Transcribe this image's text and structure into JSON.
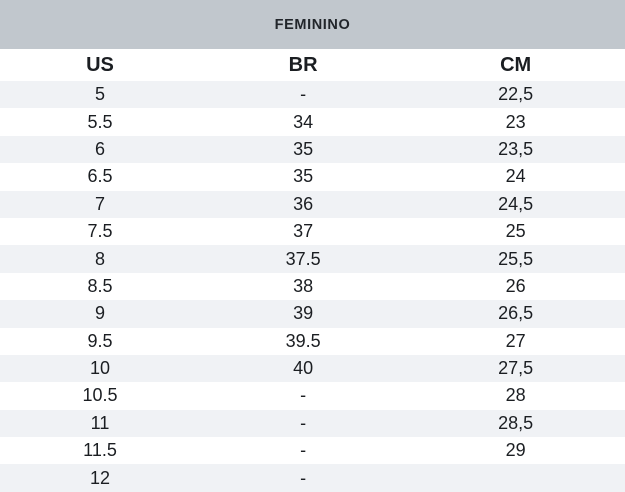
{
  "chart_data": {
    "type": "table",
    "title": "FEMININO",
    "columns": [
      "US",
      "BR",
      "CM"
    ],
    "rows": [
      [
        "5",
        "-",
        "22,5"
      ],
      [
        "5.5",
        "34",
        "23"
      ],
      [
        "6",
        "35",
        "23,5"
      ],
      [
        "6.5",
        "35",
        "24"
      ],
      [
        "7",
        "36",
        "24,5"
      ],
      [
        "7.5",
        "37",
        "25"
      ],
      [
        "8",
        "37.5",
        "25,5"
      ],
      [
        "8.5",
        "38",
        "26"
      ],
      [
        "9",
        "39",
        "26,5"
      ],
      [
        "9.5",
        "39.5",
        "27"
      ],
      [
        "10",
        "40",
        "27,5"
      ],
      [
        "10.5",
        "-",
        "28"
      ],
      [
        "11",
        "-",
        "28,5"
      ],
      [
        "11.5",
        "-",
        "29"
      ],
      [
        "12",
        "-",
        ""
      ]
    ]
  },
  "colors": {
    "title_band": "#c1c7cd",
    "row_stripe": "#f0f2f5",
    "row_base": "#ffffff",
    "text": "#1b1e22"
  }
}
